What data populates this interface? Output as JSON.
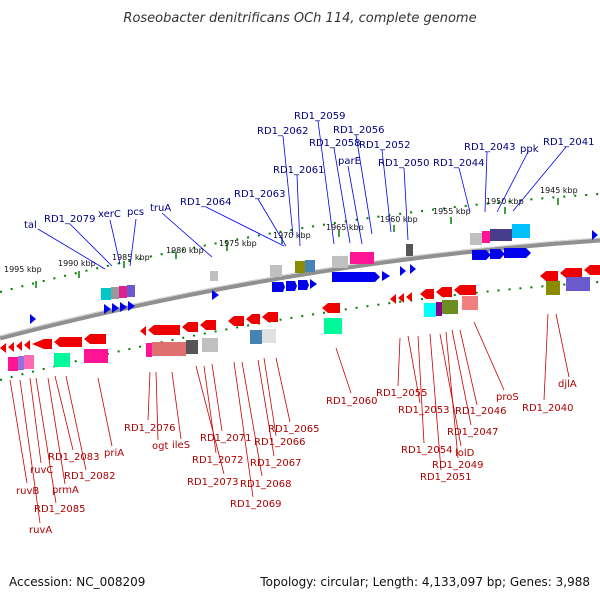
{
  "title": "Roseobacter denitrificans OCh 114, complete genome",
  "footer": {
    "accession": "Accession: NC_008209",
    "topology": "Topology: circular; Length: 4,133,097 bp; Genes: 3,988"
  },
  "colors": {
    "forward": "#0000ee",
    "reverse": "#ee0000",
    "forward_label": "#000080",
    "reverse_label": "#b00000",
    "backbone": "#808080",
    "ticks": "#008000"
  },
  "ticks": [
    "1995 kbp",
    "1990 kbp",
    "1985 kbp",
    "1980 kbp",
    "1975 kbp",
    "1970 kbp",
    "1965 kbp",
    "1960 kbp",
    "1955 kbp",
    "1950 kbp",
    "1945 kbp"
  ],
  "forward_genes": [
    "tal",
    "RD1_2079",
    "xerC",
    "pcs",
    "truA",
    "RD1_2064",
    "RD1_2063",
    "RD1_2062",
    "RD1_2061",
    "RD1_2059",
    "RD1_2058",
    "RD1_2056",
    "parE",
    "RD1_2052",
    "RD1_2050",
    "RD1_2044",
    "RD1_2043",
    "ppk",
    "RD1_2041"
  ],
  "reverse_genes": [
    "ruvB",
    "ruvA",
    "ruvC",
    "RD1_2085",
    "prmA",
    "RD1_2083",
    "RD1_2082",
    "priA",
    "RD1_2076",
    "ogt",
    "ileS",
    "RD1_2071",
    "RD1_2072",
    "RD1_2073",
    "RD1_2069",
    "RD1_2068",
    "RD1_2067",
    "RD1_2066",
    "RD1_2065",
    "RD1_2060",
    "RD1_2055",
    "RD1_2053",
    "RD1_2054",
    "RD1_2051",
    "lolD",
    "RD1_2049",
    "RD1_2047",
    "RD1_2046",
    "proS",
    "RD1_2040",
    "djlA"
  ]
}
